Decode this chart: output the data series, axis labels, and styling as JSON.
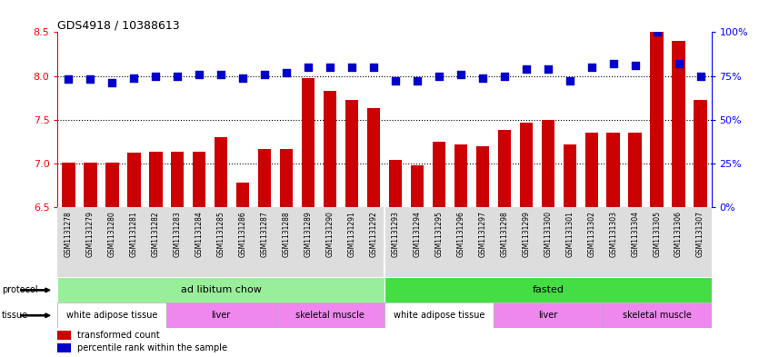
{
  "title": "GDS4918 / 10388613",
  "samples": [
    "GSM1131278",
    "GSM1131279",
    "GSM1131280",
    "GSM1131281",
    "GSM1131282",
    "GSM1131283",
    "GSM1131284",
    "GSM1131285",
    "GSM1131286",
    "GSM1131287",
    "GSM1131288",
    "GSM1131289",
    "GSM1131290",
    "GSM1131291",
    "GSM1131292",
    "GSM1131293",
    "GSM1131294",
    "GSM1131295",
    "GSM1131296",
    "GSM1131297",
    "GSM1131298",
    "GSM1131299",
    "GSM1131300",
    "GSM1131301",
    "GSM1131302",
    "GSM1131303",
    "GSM1131304",
    "GSM1131305",
    "GSM1131306",
    "GSM1131307"
  ],
  "bar_values": [
    7.01,
    7.01,
    7.01,
    7.12,
    7.14,
    7.14,
    7.14,
    7.3,
    6.78,
    7.17,
    7.17,
    7.97,
    7.83,
    7.73,
    7.63,
    7.04,
    6.98,
    7.25,
    7.22,
    7.2,
    7.38,
    7.47,
    7.5,
    7.22,
    7.35,
    7.35,
    7.35,
    8.5,
    8.4,
    7.73
  ],
  "blue_values": [
    73,
    73,
    71,
    74,
    75,
    75,
    76,
    76,
    74,
    76,
    77,
    80,
    80,
    80,
    80,
    72,
    72,
    75,
    76,
    74,
    75,
    79,
    79,
    72,
    80,
    82,
    81,
    100,
    82,
    75
  ],
  "ylim_left": [
    6.5,
    8.5
  ],
  "ylim_right": [
    0,
    100
  ],
  "bar_color": "#cc0000",
  "dot_color": "#0000cc",
  "bg_color": "#ffffff",
  "protocol_groups": [
    {
      "label": "ad libitum chow",
      "start": 0,
      "end": 14,
      "color": "#99ee99"
    },
    {
      "label": "fasted",
      "start": 15,
      "end": 29,
      "color": "#44dd44"
    }
  ],
  "tissue_groups": [
    {
      "label": "white adipose tissue",
      "start": 0,
      "end": 4,
      "color": "#ffffff"
    },
    {
      "label": "liver",
      "start": 5,
      "end": 9,
      "color": "#ee88ee"
    },
    {
      "label": "skeletal muscle",
      "start": 10,
      "end": 14,
      "color": "#ee88ee"
    },
    {
      "label": "white adipose tissue",
      "start": 15,
      "end": 19,
      "color": "#ffffff"
    },
    {
      "label": "liver",
      "start": 20,
      "end": 24,
      "color": "#ee88ee"
    },
    {
      "label": "skeletal muscle",
      "start": 25,
      "end": 29,
      "color": "#ee88ee"
    }
  ],
  "yticks_left": [
    6.5,
    7.0,
    7.5,
    8.0,
    8.5
  ],
  "yticks_right": [
    0,
    25,
    50,
    75,
    100
  ],
  "hline_values": [
    7.0,
    7.5,
    8.0
  ],
  "bar_width": 0.6,
  "dot_size": 35,
  "label_bg_color": "#dddddd",
  "tissue_border_color": "#aaaaaa"
}
